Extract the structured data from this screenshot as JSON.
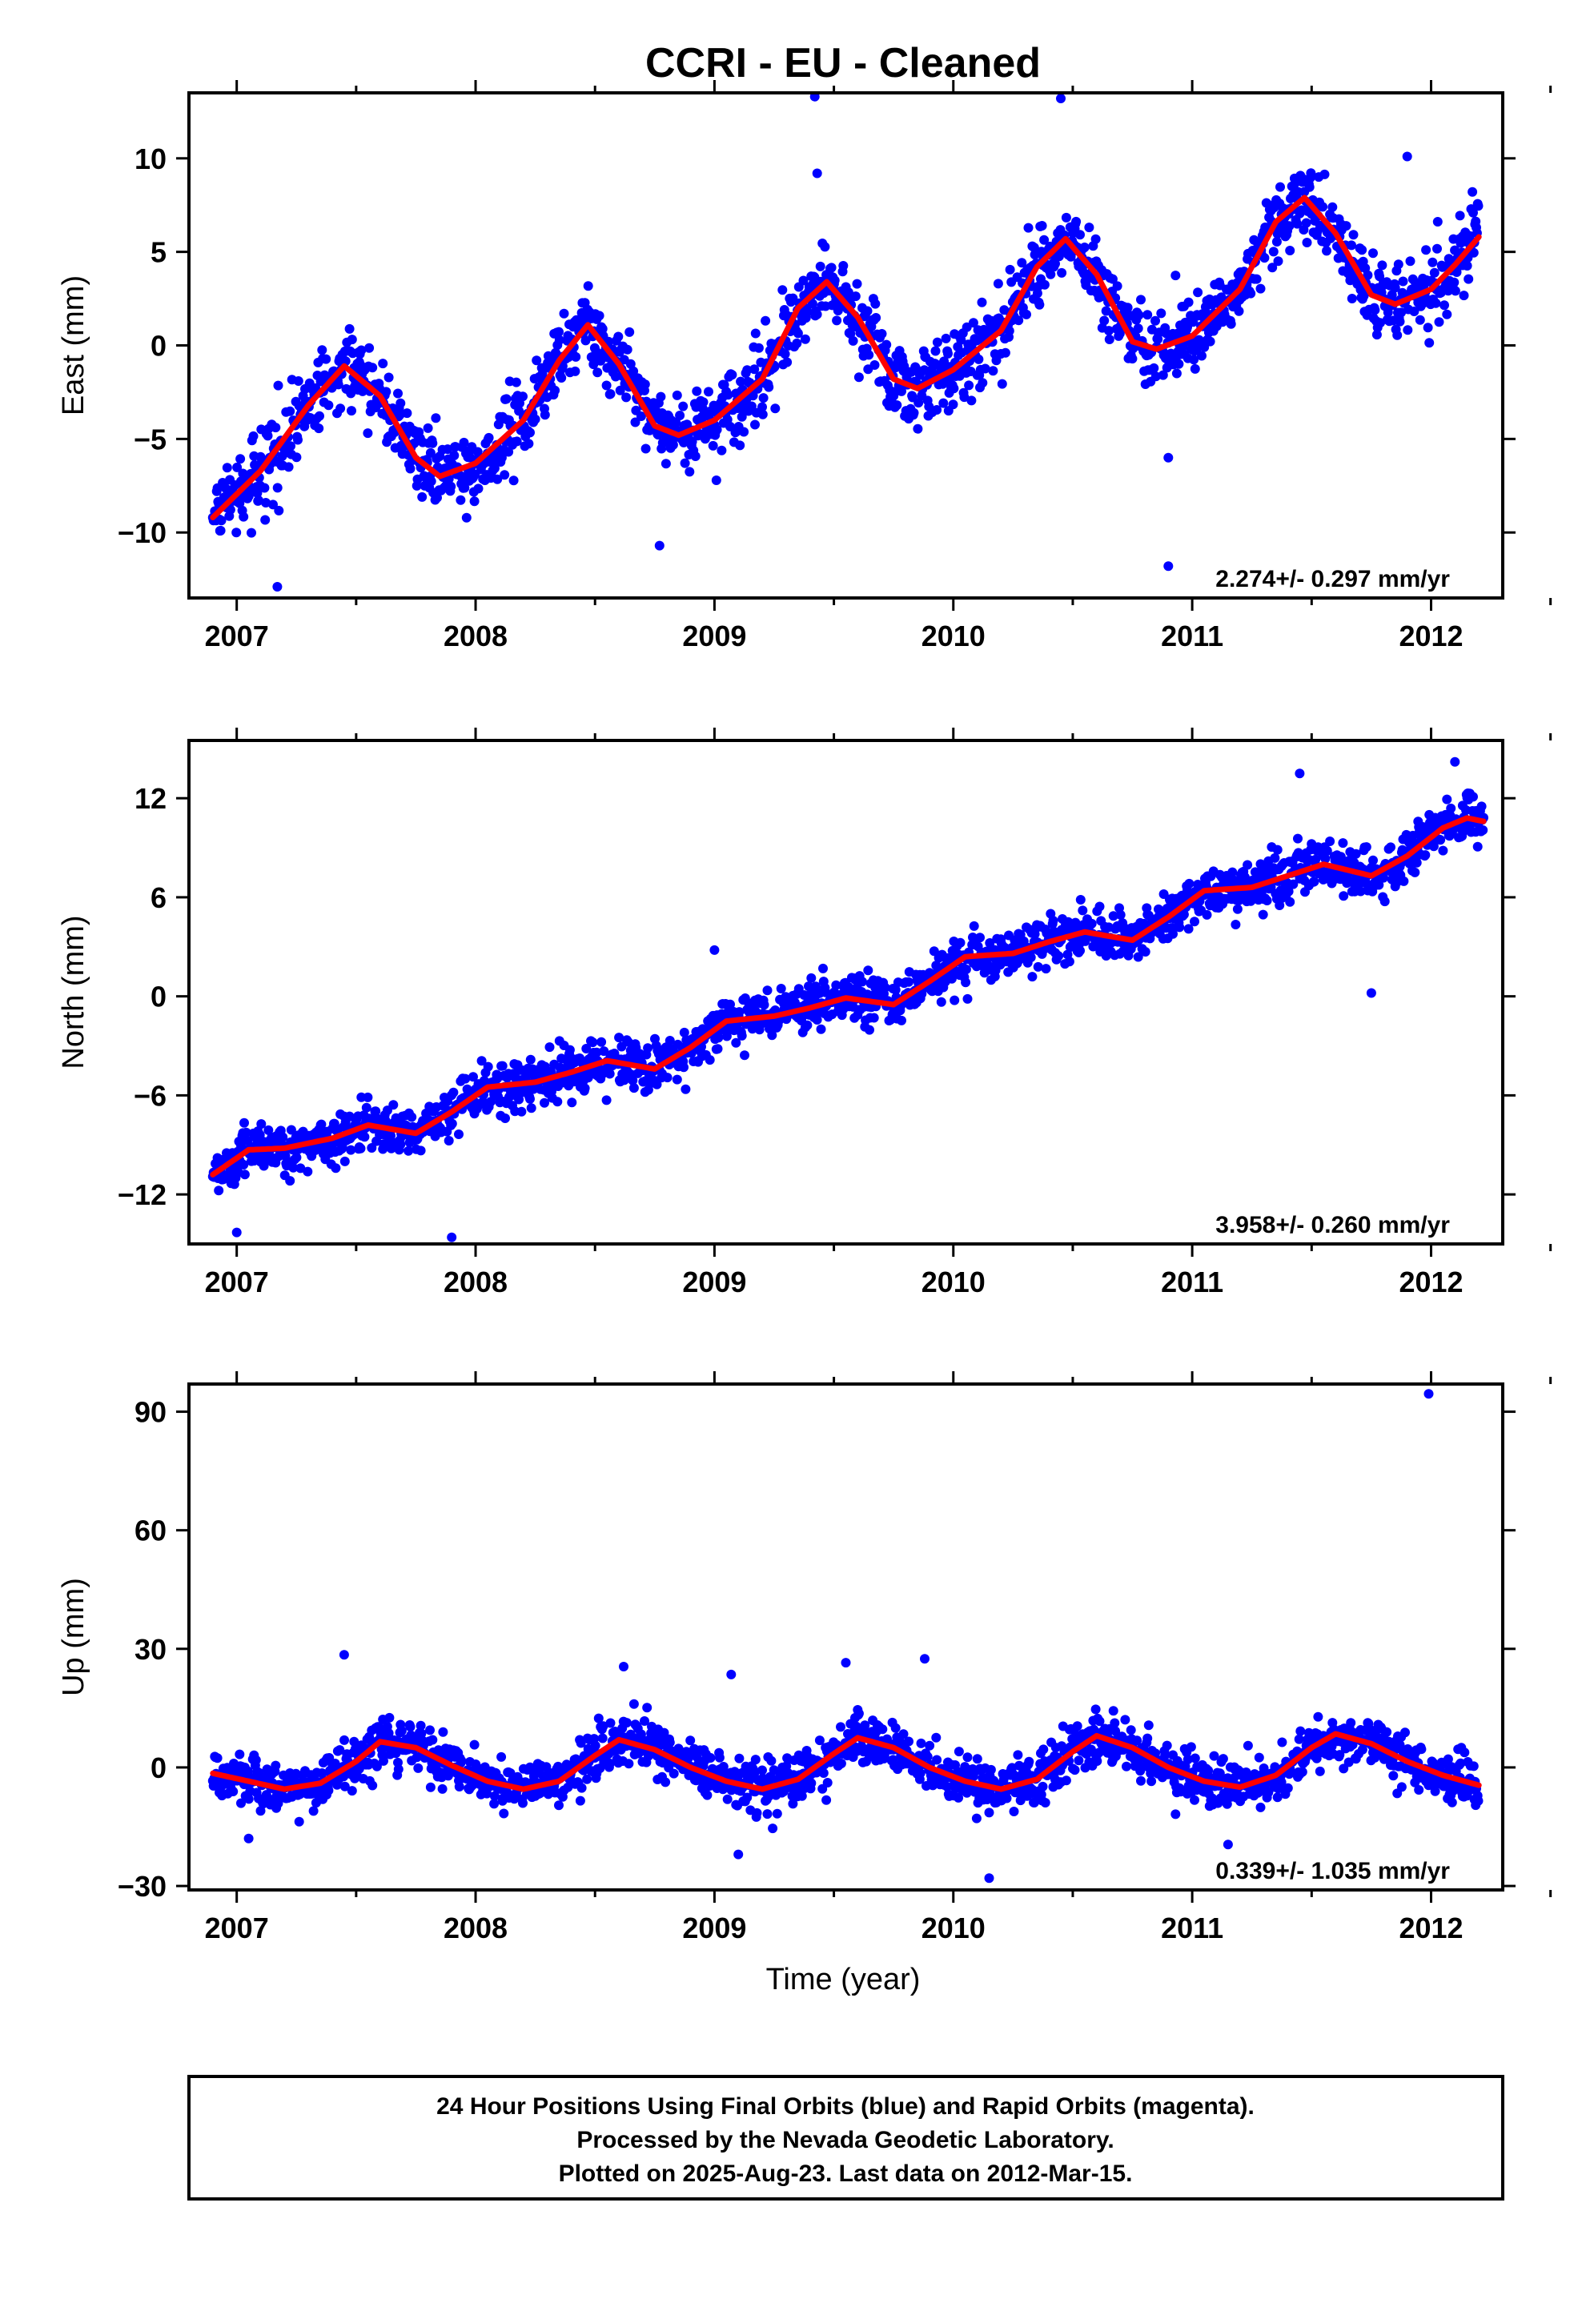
{
  "title": "CCRI  - EU - Cleaned",
  "xlabel": "Time (year)",
  "footer": {
    "line1": "24 Hour Positions Using Final Orbits (blue) and Rapid Orbits (magenta).",
    "line2": "Processed by the Nevada Geodetic Laboratory.",
    "line3": "Plotted on 2025-Aug-23. Last data on 2012-Mar-15."
  },
  "colors": {
    "points": "#0000ff",
    "fit": "#ff0000",
    "frame": "#000000"
  },
  "chart_data": [
    {
      "type": "scatter",
      "ylabel": "East (mm)",
      "rate_label": "2.274+/- 0.297 mm/yr",
      "xlim": [
        2006.8,
        2012.3
      ],
      "ylim": [
        -13.5,
        13.5
      ],
      "xticks": [
        "2007",
        "2008",
        "2009",
        "2010",
        "2011",
        "2012"
      ],
      "yticks": [
        "10",
        "5",
        "0",
        "−5",
        "−10"
      ],
      "yticks_values": [
        10,
        5,
        0,
        -5,
        -10
      ],
      "fit": [
        [
          2006.9,
          -9.2
        ],
        [
          2007.1,
          -6.7
        ],
        [
          2007.3,
          -3.2
        ],
        [
          2007.45,
          -1.1
        ],
        [
          2007.6,
          -2.7
        ],
        [
          2007.75,
          -6.0
        ],
        [
          2007.85,
          -7.0
        ],
        [
          2008.0,
          -6.3
        ],
        [
          2008.2,
          -4.0
        ],
        [
          2008.35,
          -0.8
        ],
        [
          2008.47,
          1.1
        ],
        [
          2008.6,
          -1.0
        ],
        [
          2008.75,
          -4.3
        ],
        [
          2008.85,
          -4.8
        ],
        [
          2009.0,
          -4.0
        ],
        [
          2009.2,
          -1.8
        ],
        [
          2009.35,
          2.0
        ],
        [
          2009.47,
          3.4
        ],
        [
          2009.6,
          1.5
        ],
        [
          2009.75,
          -1.8
        ],
        [
          2009.85,
          -2.3
        ],
        [
          2010.0,
          -1.3
        ],
        [
          2010.2,
          0.8
        ],
        [
          2010.35,
          4.2
        ],
        [
          2010.47,
          5.7
        ],
        [
          2010.6,
          3.8
        ],
        [
          2010.75,
          0.2
        ],
        [
          2010.85,
          -0.2
        ],
        [
          2011.0,
          0.5
        ],
        [
          2011.2,
          3.0
        ],
        [
          2011.35,
          6.6
        ],
        [
          2011.47,
          7.9
        ],
        [
          2011.6,
          6.0
        ],
        [
          2011.75,
          2.7
        ],
        [
          2011.85,
          2.2
        ],
        [
          2012.0,
          3.0
        ],
        [
          2012.1,
          4.3
        ],
        [
          2012.2,
          5.8
        ]
      ],
      "noise": 1.6,
      "outliers": [
        [
          2007.17,
          -12.9
        ],
        [
          2009.42,
          13.3
        ],
        [
          2010.45,
          13.2
        ],
        [
          2010.9,
          -11.8
        ],
        [
          2009.43,
          9.2
        ],
        [
          2011.9,
          10.1
        ],
        [
          2010.9,
          -6.0
        ],
        [
          2008.77,
          -10.7
        ]
      ]
    },
    {
      "type": "scatter",
      "ylabel": "North (mm)",
      "rate_label": "3.958+/- 0.260 mm/yr",
      "xlim": [
        2006.8,
        2012.3
      ],
      "ylim": [
        -15,
        15.5
      ],
      "xticks": [
        "2007",
        "2008",
        "2009",
        "2010",
        "2011",
        "2012"
      ],
      "yticks": [
        "12",
        "6",
        "0",
        "−6",
        "−12"
      ],
      "yticks_values": [
        12,
        6,
        0,
        -6,
        -12
      ],
      "fit": [
        [
          2006.9,
          -10.8
        ],
        [
          2007.05,
          -9.3
        ],
        [
          2007.2,
          -9.2
        ],
        [
          2007.4,
          -8.6
        ],
        [
          2007.55,
          -7.8
        ],
        [
          2007.75,
          -8.3
        ],
        [
          2007.9,
          -7.0
        ],
        [
          2008.05,
          -5.5
        ],
        [
          2008.25,
          -5.2
        ],
        [
          2008.4,
          -4.6
        ],
        [
          2008.55,
          -3.9
        ],
        [
          2008.75,
          -4.4
        ],
        [
          2008.9,
          -3.1
        ],
        [
          2009.05,
          -1.5
        ],
        [
          2009.25,
          -1.2
        ],
        [
          2009.4,
          -0.7
        ],
        [
          2009.55,
          -0.1
        ],
        [
          2009.75,
          -0.5
        ],
        [
          2009.9,
          0.9
        ],
        [
          2010.05,
          2.4
        ],
        [
          2010.25,
          2.6
        ],
        [
          2010.4,
          3.3
        ],
        [
          2010.55,
          3.9
        ],
        [
          2010.75,
          3.4
        ],
        [
          2010.9,
          4.8
        ],
        [
          2011.05,
          6.4
        ],
        [
          2011.25,
          6.6
        ],
        [
          2011.4,
          7.3
        ],
        [
          2011.55,
          8.0
        ],
        [
          2011.75,
          7.3
        ],
        [
          2011.9,
          8.5
        ],
        [
          2012.05,
          10.2
        ],
        [
          2012.15,
          10.8
        ],
        [
          2012.22,
          10.6
        ]
      ],
      "noise": 1.2,
      "outliers": [
        [
          2007.0,
          -14.3
        ],
        [
          2007.9,
          -14.6
        ],
        [
          2011.45,
          13.5
        ],
        [
          2011.75,
          0.2
        ],
        [
          2012.1,
          14.2
        ],
        [
          2009.0,
          2.8
        ]
      ]
    },
    {
      "type": "scatter",
      "ylabel": "Up (mm)",
      "rate_label": "0.339+/- 1.035 mm/yr",
      "xlim": [
        2006.8,
        2012.3
      ],
      "ylim": [
        -31,
        97
      ],
      "xticks": [
        "2007",
        "2008",
        "2009",
        "2010",
        "2011",
        "2012"
      ],
      "yticks": [
        "90",
        "60",
        "30",
        "0",
        "−30"
      ],
      "yticks_values": [
        90,
        60,
        30,
        0,
        -30
      ],
      "fit": [
        [
          2006.9,
          -1.5
        ],
        [
          2007.05,
          -3.5
        ],
        [
          2007.2,
          -5.5
        ],
        [
          2007.35,
          -4.0
        ],
        [
          2007.5,
          1.5
        ],
        [
          2007.6,
          6.5
        ],
        [
          2007.75,
          5.0
        ],
        [
          2007.9,
          0.5
        ],
        [
          2008.05,
          -3.5
        ],
        [
          2008.2,
          -5.5
        ],
        [
          2008.35,
          -3.5
        ],
        [
          2008.5,
          3.0
        ],
        [
          2008.6,
          7.0
        ],
        [
          2008.75,
          4.5
        ],
        [
          2008.9,
          0.0
        ],
        [
          2009.05,
          -3.5
        ],
        [
          2009.2,
          -5.5
        ],
        [
          2009.35,
          -3.0
        ],
        [
          2009.5,
          3.5
        ],
        [
          2009.6,
          7.5
        ],
        [
          2009.75,
          5.0
        ],
        [
          2009.9,
          0.0
        ],
        [
          2010.05,
          -3.5
        ],
        [
          2010.2,
          -5.5
        ],
        [
          2010.35,
          -3.0
        ],
        [
          2010.5,
          4.0
        ],
        [
          2010.6,
          8.0
        ],
        [
          2010.75,
          5.0
        ],
        [
          2010.9,
          0.0
        ],
        [
          2011.05,
          -3.5
        ],
        [
          2011.2,
          -5.0
        ],
        [
          2011.35,
          -2.0
        ],
        [
          2011.5,
          5.0
        ],
        [
          2011.6,
          8.5
        ],
        [
          2011.75,
          6.0
        ],
        [
          2011.9,
          1.5
        ],
        [
          2012.05,
          -2.0
        ],
        [
          2012.2,
          -4.5
        ]
      ],
      "noise": 5.0,
      "outliers": [
        [
          2011.99,
          94.5
        ],
        [
          2007.45,
          28.5
        ],
        [
          2009.88,
          27.5
        ],
        [
          2009.55,
          26.5
        ],
        [
          2008.62,
          25.5
        ],
        [
          2009.07,
          23.5
        ],
        [
          2010.15,
          -28.0
        ],
        [
          2007.05,
          -18.0
        ],
        [
          2011.15,
          -19.5
        ],
        [
          2009.1,
          -22.0
        ]
      ]
    }
  ]
}
